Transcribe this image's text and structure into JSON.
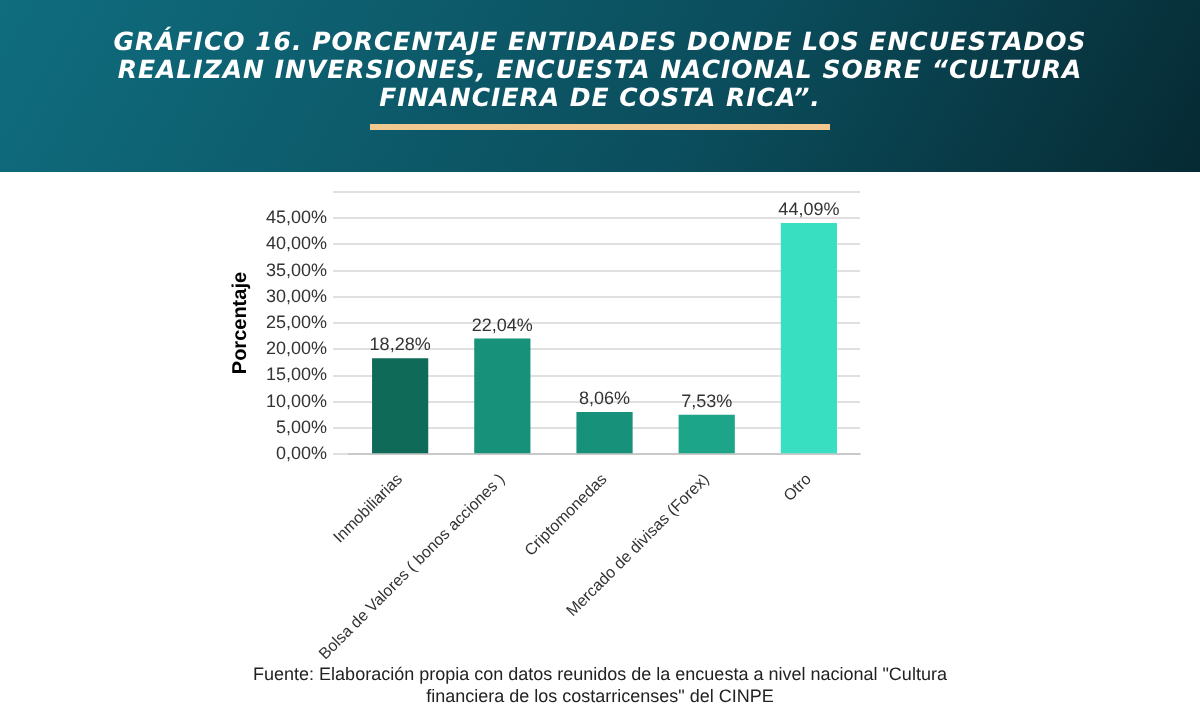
{
  "chart_data": {
    "type": "bar",
    "title": "GRÁFICO 16. PORCENTAJE ENTIDADES DONDE LOS ENCUESTADOS REALIZAN INVERSIONES, ENCUESTA NACIONAL SOBRE “CULTURA FINANCIERA DE COSTA RICA”.",
    "ylabel": "Porcentaje",
    "categories": [
      "Inmobiliarias",
      "Bolsa de Valores ( bonos acciones )",
      "Criptomonedas",
      "Mercado de divisas (Forex)",
      "Otro"
    ],
    "values": [
      18.28,
      22.04,
      8.06,
      7.53,
      44.09
    ],
    "value_labels": [
      "18,28%",
      "22,04%",
      "8,06%",
      "7,53%",
      "44,09%"
    ],
    "colors": [
      "#0f6b58",
      "#17917a",
      "#17917a",
      "#1ca588",
      "#38dfc0"
    ],
    "ylim": [
      0,
      50
    ],
    "yticks": [
      {
        "value": 0,
        "label": "0,00%"
      },
      {
        "value": 5,
        "label": "5,00%"
      },
      {
        "value": 10,
        "label": "10,00%"
      },
      {
        "value": 15,
        "label": "15,00%"
      },
      {
        "value": 20,
        "label": "20,00%"
      },
      {
        "value": 25,
        "label": "25,00%"
      },
      {
        "value": 30,
        "label": "30,00%"
      },
      {
        "value": 35,
        "label": "35,00%"
      },
      {
        "value": 40,
        "label": "40,00%"
      },
      {
        "value": 45,
        "label": "45,00%"
      },
      {
        "value": 50,
        "label": null
      }
    ],
    "grid": "y",
    "annotations": [
      "Fuente: Elaboración propia con datos reunidos de la encuesta a nivel nacional  \"Cultura financiera de los costarricenses\" del CINPE"
    ]
  }
}
